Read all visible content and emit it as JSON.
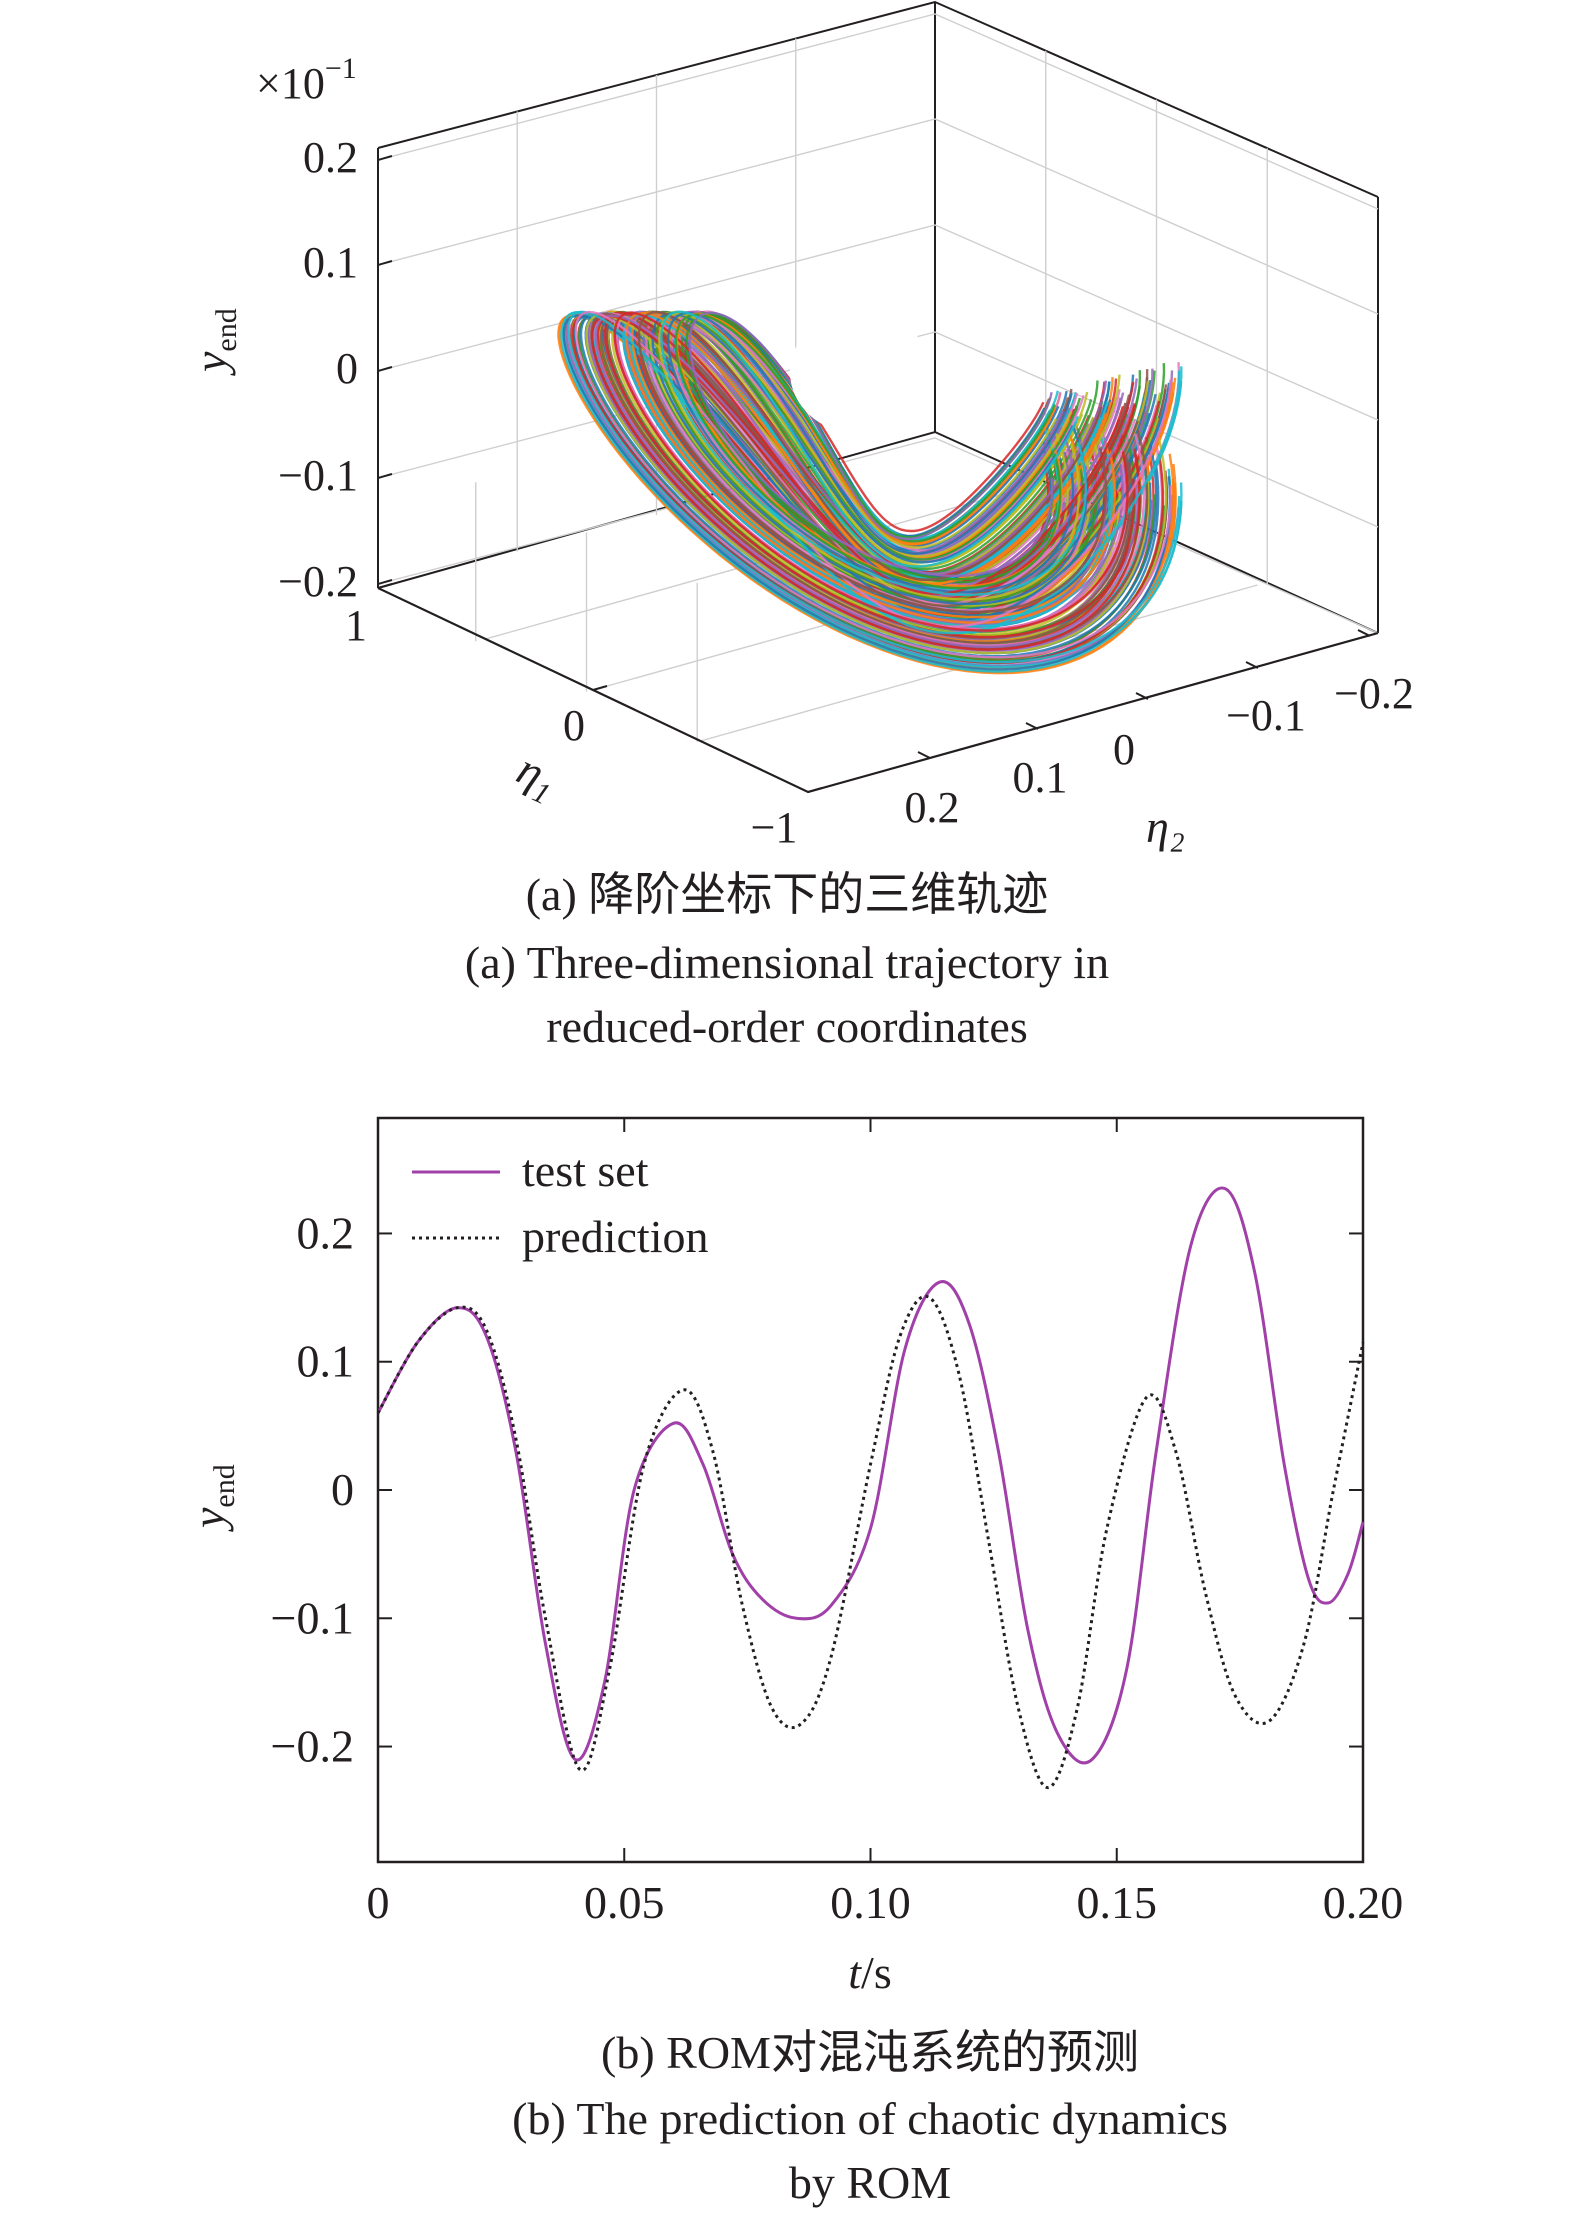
{
  "captions": {
    "a_cn": "(a) 降阶坐标下的三维轨迹",
    "a_en_1": "(a) Three-dimensional trajectory in",
    "a_en_2": "reduced-order coordinates",
    "b_cn": "(b) ROM对混沌系统的预测",
    "b_en_1": "(b) The prediction of chaotic dynamics",
    "b_en_2": "by ROM"
  },
  "chart_data": [
    {
      "type": "line",
      "subtype": "3d-trajectory",
      "z_multiplier": "×10",
      "z_multiplier_exp": "−1",
      "zlabel_main": "y",
      "zlabel_sub": "end",
      "z_ticks": [
        "0.2",
        "0.1",
        "0",
        "−0.1",
        "−0.2"
      ],
      "zlim": [
        -0.2,
        0.2
      ],
      "xlabel_main": "η",
      "xlabel_sub": "1",
      "x_ticks": [
        "1",
        "0",
        "−1"
      ],
      "xlim": [
        -1,
        1
      ],
      "ylabel": "η₂",
      "y_ticks": [
        "0.2",
        "0.1",
        "0",
        "−0.1",
        "−0.2"
      ],
      "ylim": [
        -0.2,
        0.2
      ],
      "grid": true,
      "palette": [
        "#1f77b4",
        "#d62728",
        "#ff7f0e",
        "#2ca02c",
        "#9467bd",
        "#17becf",
        "#bcbd22",
        "#e377c2",
        "#8c564b"
      ]
    },
    {
      "type": "line",
      "xlabel_main": "t",
      "xlabel_unit": "/s",
      "ylabel_main": "y",
      "ylabel_sub": "end",
      "xlim": [
        0,
        0.2
      ],
      "ylim": [
        -0.29,
        0.29
      ],
      "x_ticks": [
        0,
        0.05,
        0.1,
        0.15,
        0.2
      ],
      "x_tick_labels": [
        "0",
        "0.05",
        "0.10",
        "0.15",
        "0.20"
      ],
      "y_ticks": [
        0.2,
        0.1,
        0,
        -0.1,
        -0.2
      ],
      "y_tick_labels": [
        "0.2",
        "0.1",
        "0",
        "−0.1",
        "−0.2"
      ],
      "legend": "top-left",
      "series": [
        {
          "name": "test set",
          "color": "#a040a8",
          "style": "solid",
          "x": [
            0,
            0.008,
            0.016,
            0.022,
            0.028,
            0.034,
            0.04,
            0.046,
            0.052,
            0.06,
            0.066,
            0.072,
            0.078,
            0.085,
            0.092,
            0.1,
            0.107,
            0.114,
            0.12,
            0.126,
            0.132,
            0.138,
            0.145,
            0.152,
            0.158,
            0.165,
            0.172,
            0.178,
            0.184,
            0.189,
            0.193,
            0.197,
            0.2
          ],
          "y": [
            0.06,
            0.115,
            0.142,
            0.12,
            0.03,
            -0.12,
            -0.21,
            -0.15,
            0.0,
            0.052,
            0.02,
            -0.05,
            -0.085,
            -0.1,
            -0.09,
            -0.03,
            0.11,
            0.162,
            0.13,
            0.03,
            -0.11,
            -0.19,
            -0.21,
            -0.14,
            0.03,
            0.19,
            0.235,
            0.17,
            0.02,
            -0.07,
            -0.088,
            -0.065,
            -0.025
          ]
        },
        {
          "name": "prediction",
          "color": "#231f20",
          "style": "dotted",
          "x": [
            0,
            0.008,
            0.016,
            0.022,
            0.028,
            0.034,
            0.041,
            0.047,
            0.054,
            0.062,
            0.068,
            0.074,
            0.08,
            0.086,
            0.092,
            0.1,
            0.106,
            0.112,
            0.118,
            0.124,
            0.13,
            0.136,
            0.142,
            0.148,
            0.156,
            0.162,
            0.168,
            0.174,
            0.181,
            0.188,
            0.194,
            0.2
          ],
          "y": [
            0.06,
            0.115,
            0.142,
            0.125,
            0.04,
            -0.1,
            -0.218,
            -0.14,
            0.02,
            0.078,
            0.03,
            -0.09,
            -0.17,
            -0.182,
            -0.13,
            0.02,
            0.12,
            0.15,
            0.09,
            -0.04,
            -0.17,
            -0.232,
            -0.17,
            -0.03,
            0.072,
            0.03,
            -0.08,
            -0.16,
            -0.18,
            -0.12,
            0.0,
            0.115
          ]
        }
      ]
    }
  ]
}
